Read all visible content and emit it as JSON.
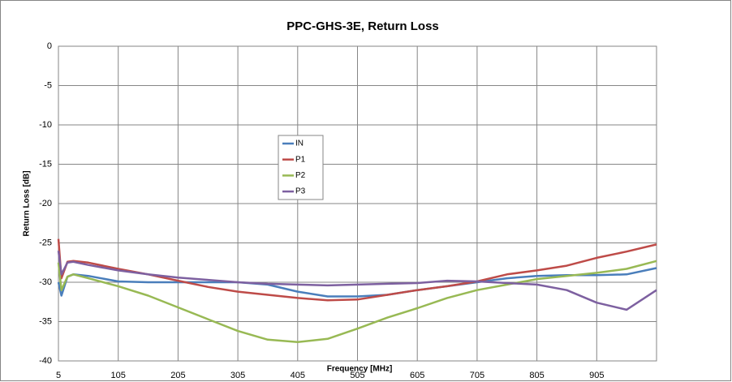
{
  "chart_data": {
    "type": "line",
    "title": "PPC-GHS-3E, Return Loss",
    "x_label": "Frequency [MHz]",
    "y_label": "Return Loss [dB]",
    "x": [
      5,
      10,
      20,
      30,
      55,
      105,
      155,
      205,
      255,
      305,
      355,
      405,
      455,
      505,
      555,
      605,
      655,
      705,
      755,
      805,
      855,
      905,
      955,
      1005
    ],
    "series": [
      {
        "name": "IN",
        "color": "#4a7ebb",
        "values": [
          -30,
          -31.7,
          -29.3,
          -29,
          -29.2,
          -29.9,
          -30,
          -30,
          -30,
          -30,
          -30.3,
          -31.2,
          -31.8,
          -31.8,
          -31.6,
          -31,
          -30.5,
          -30,
          -29.5,
          -29.2,
          -29.1,
          -29.1,
          -29,
          -28.2
        ]
      },
      {
        "name": "P1",
        "color": "#be4b48",
        "values": [
          -24.5,
          -29.5,
          -27.4,
          -27.3,
          -27.5,
          -28.3,
          -29,
          -29.8,
          -30.6,
          -31.2,
          -31.6,
          -32,
          -32.3,
          -32.2,
          -31.6,
          -31,
          -30.5,
          -29.9,
          -29,
          -28.5,
          -27.9,
          -26.9,
          -26.1,
          -25.2
        ]
      },
      {
        "name": "P2",
        "color": "#98b954",
        "values": [
          -27.5,
          -31,
          -29.3,
          -29,
          -29.5,
          -30.5,
          -31.7,
          -33.2,
          -34.7,
          -36.2,
          -37.3,
          -37.6,
          -37.2,
          -35.9,
          -34.5,
          -33.3,
          -32,
          -31,
          -30.3,
          -29.6,
          -29.2,
          -28.8,
          -28.3,
          -27.3
        ]
      },
      {
        "name": "P3",
        "color": "#7d60a0",
        "values": [
          -26,
          -29,
          -27.5,
          -27.4,
          -27.8,
          -28.5,
          -29,
          -29.4,
          -29.7,
          -30,
          -30.2,
          -30.3,
          -30.4,
          -30.3,
          -30.2,
          -30.1,
          -29.8,
          -29.9,
          -30.1,
          -30.3,
          -31,
          -32.6,
          -33.5,
          -31
        ]
      }
    ],
    "xlim": [
      5,
      1005
    ],
    "xticks": [
      5,
      105,
      205,
      305,
      405,
      505,
      605,
      705,
      805,
      905
    ],
    "ylim": [
      -40,
      0
    ],
    "yticks": [
      0,
      -5,
      -10,
      -15,
      -20,
      -25,
      -30,
      -35,
      -40
    ],
    "grid": true
  }
}
